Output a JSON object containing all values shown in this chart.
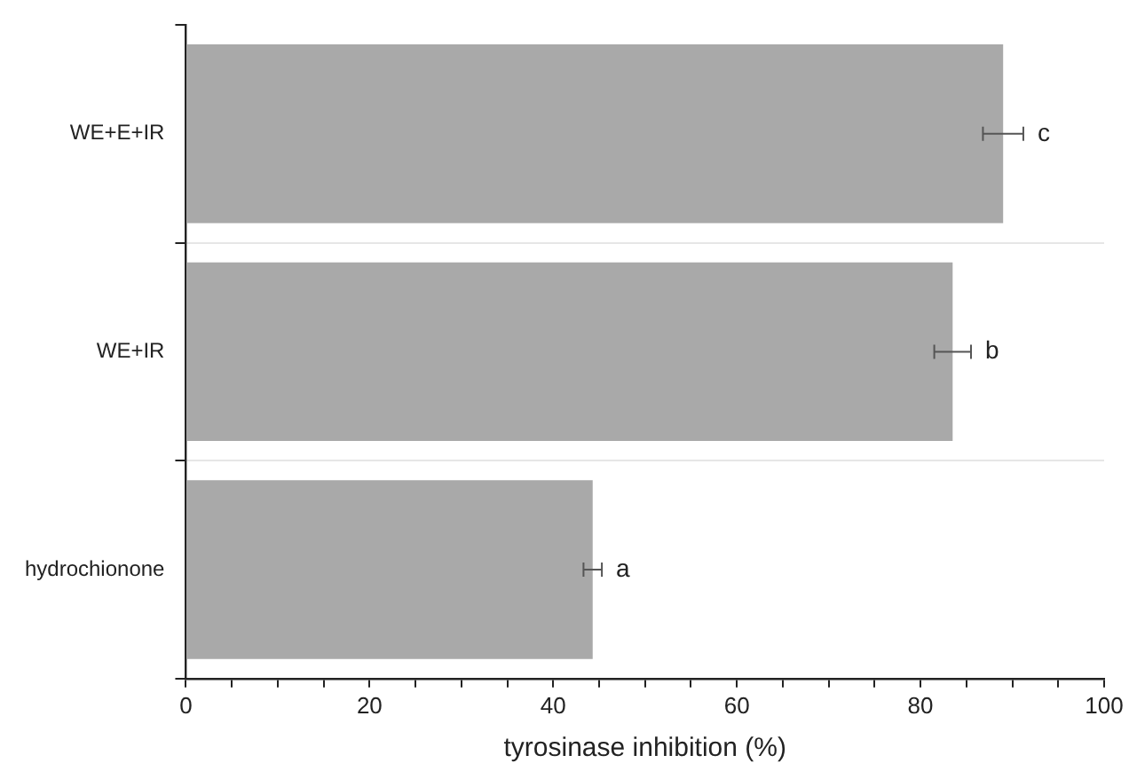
{
  "chart_data": {
    "type": "bar",
    "orientation": "horizontal",
    "categories": [
      "WE+E+IR",
      "WE+IR",
      "hydrochionone"
    ],
    "values": [
      89,
      83.5,
      44.3
    ],
    "errors": [
      2.2,
      2,
      1
    ],
    "color": "#a9a9a9",
    "xlabel": "tyrosinase inhibition (%)",
    "xlim": [
      0,
      100
    ],
    "xticks": [
      0,
      {
        "value": 5,
        "label": null
      },
      {
        "value": 10,
        "label": null
      },
      {
        "value": 15,
        "label": null
      },
      20,
      {
        "value": 25,
        "label": null
      },
      {
        "value": 30,
        "label": null
      },
      {
        "value": 35,
        "label": null
      },
      40,
      {
        "value": 45,
        "label": null
      },
      {
        "value": 50,
        "label": null
      },
      {
        "value": 55,
        "label": null
      },
      60,
      {
        "value": 65,
        "label": null
      },
      {
        "value": 70,
        "label": null
      },
      {
        "value": 75,
        "label": null
      },
      80,
      {
        "value": 85,
        "label": null
      },
      {
        "value": 90,
        "label": null
      },
      {
        "value": 95,
        "label": null
      },
      100
    ],
    "grid": "y",
    "legend": false,
    "annotations": [
      "c",
      "b",
      "a"
    ]
  }
}
